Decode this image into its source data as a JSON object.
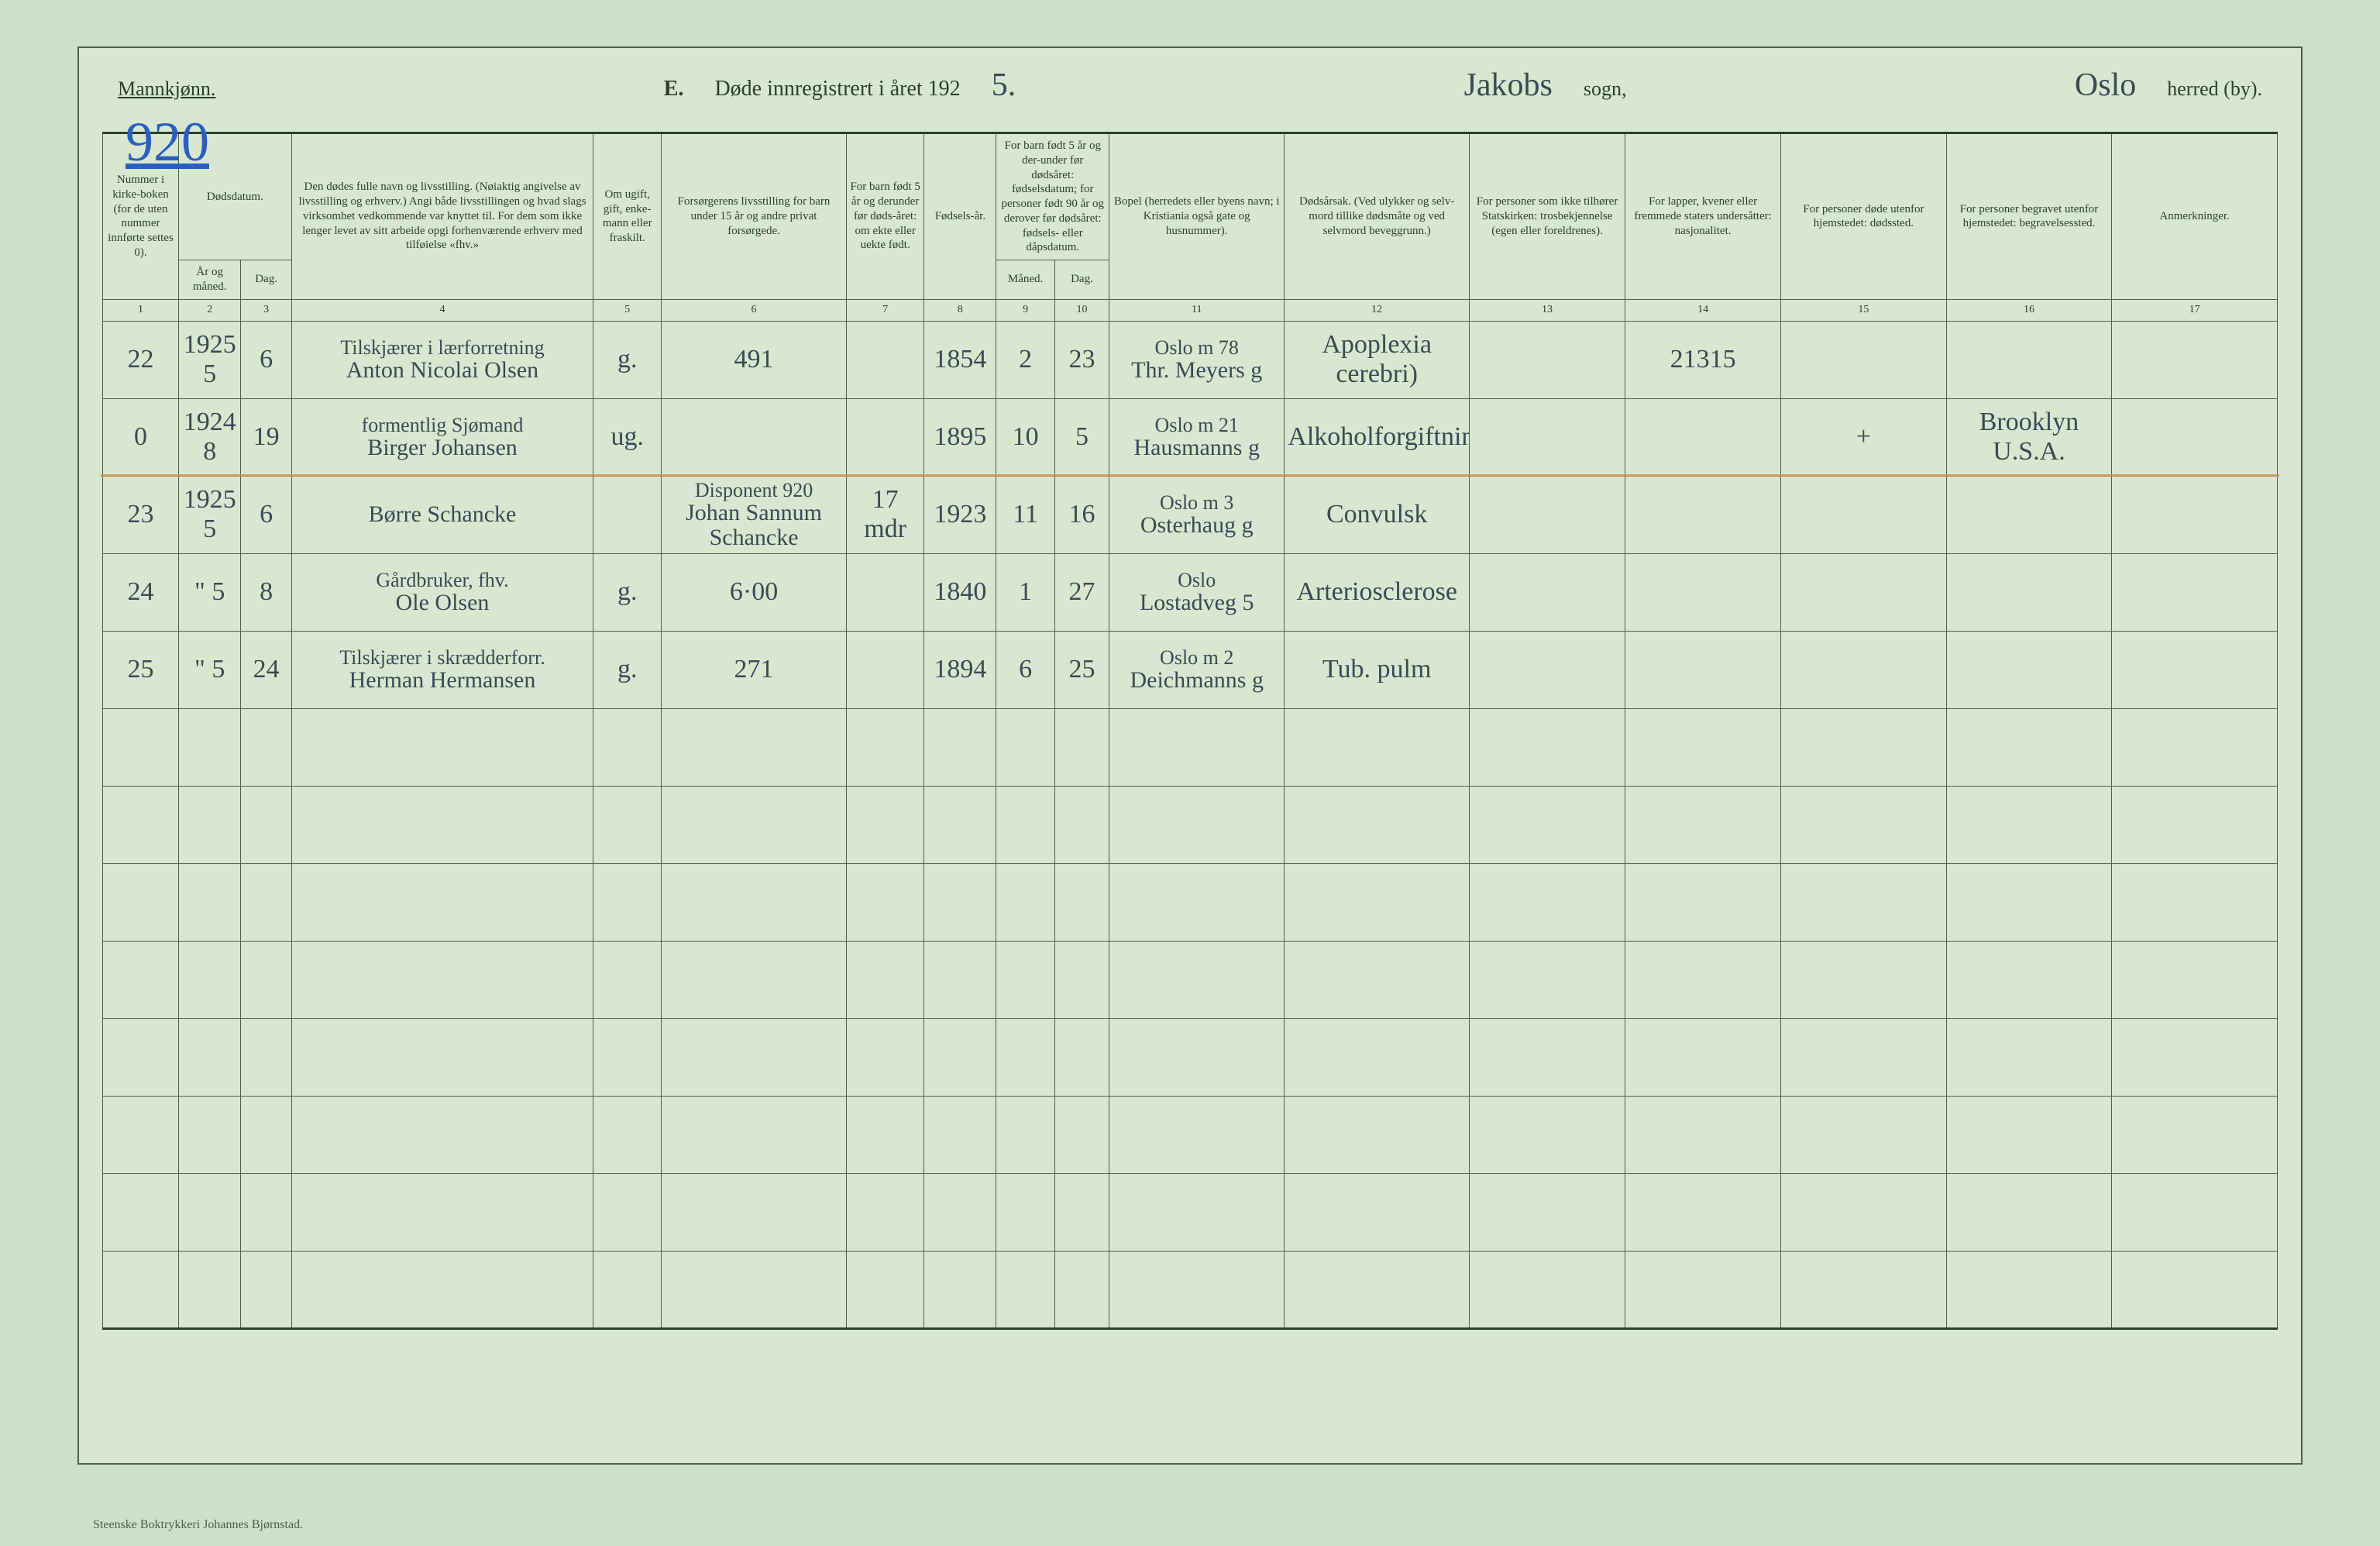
{
  "header": {
    "gender": "Mannkjønn.",
    "section_letter": "E.",
    "section_text": "Døde innregistrert i året 192",
    "year_suffix_hand": "5.",
    "sogn_hand": "Jakobs",
    "sogn_label": "sogn,",
    "herred_hand": "Oslo",
    "herred_label": "herred (by)."
  },
  "page_number": "920",
  "columns": {
    "c1": "Nummer i kirke-boken (for de uten nummer innførte settes 0).",
    "c2_top": "Dødsdatum.",
    "c2_a": "År og måned.",
    "c2_b": "Dag.",
    "c4": "Den dødes fulle navn og livsstilling. (Nøiaktig angivelse av livsstilling og erhverv.) Angi både livsstillingen og hvad slags virksomhet vedkommende var knyttet til. For dem som ikke lenger levet av sitt arbeide opgi forhenværende erhverv med tilføielse «fhv.»",
    "c5": "Om ugift, gift, enke-mann eller fraskilt.",
    "c6": "Forsørgerens livsstilling for barn under 15 år og andre privat forsørgede.",
    "c7": "For barn født 5 år og derunder før døds-året: om ekte eller uekte født.",
    "c8": "Fødsels-år.",
    "c9_top": "For barn født 5 år og der-under før dødsåret: fødselsdatum; for personer født 90 år og derover før dødsåret: fødsels- eller dåpsdatum.",
    "c9_a": "Måned.",
    "c9_b": "Dag.",
    "c11": "Bopel (herredets eller byens navn; i Kristiania også gate og husnummer).",
    "c12": "Dødsårsak. (Ved ulykker og selv-mord tillike dødsmåte og ved selvmord beveggrunn.)",
    "c13": "For personer som ikke tilhører Statskirken: trosbekjennelse (egen eller foreldrenes).",
    "c14": "For lapper, kvener eller fremmede staters undersåtter: nasjonalitet.",
    "c15": "For personer døde utenfor hjemstedet: dødssted.",
    "c16": "For personer begravet utenfor hjemstedet: begravelsessted.",
    "c17": "Anmerkninger."
  },
  "colnums": [
    "1",
    "2",
    "3",
    "4",
    "5",
    "6",
    "7",
    "8",
    "9",
    "10",
    "11",
    "12",
    "13",
    "14",
    "15",
    "16",
    "17"
  ],
  "rows": [
    {
      "n": "22",
      "yr": "1925 5",
      "day": "6",
      "name_top": "Tilskjærer i lærforretning",
      "name_bot": "Anton Nicolai Olsen",
      "status": "g.",
      "provider": "491",
      "ekte": "",
      "born": "1854",
      "bm": "2",
      "bd": "23",
      "home_top": "Oslo   m 78",
      "home_bot": "Thr. Meyers g",
      "cause": "Apoplexia cerebri)",
      "rel": "",
      "nat": "21315",
      "dsted": "",
      "bsted": "",
      "anm": ""
    },
    {
      "n": "0",
      "yr": "1924 8",
      "day": "19",
      "name_top": "formentlig Sjømand",
      "name_bot": "Birger Johansen",
      "status": "ug.",
      "provider": "",
      "ekte": "",
      "born": "1895",
      "bm": "10",
      "bd": "5",
      "home_top": "Oslo   m 21",
      "home_bot": "Hausmanns g",
      "cause": "Alkoholforgiftning",
      "rel": "",
      "nat": "",
      "dsted": "+",
      "bsted": "Brooklyn U.S.A.",
      "anm": ""
    },
    {
      "n": "23",
      "yr": "1925 5",
      "day": "6",
      "name_top": "",
      "name_bot": "Børre Schancke",
      "status": "",
      "provider_top": "Disponent 920",
      "provider": "Johan Sannum Schancke",
      "ekte": "17 mdr",
      "born": "1923",
      "bm": "11",
      "bd": "16",
      "home_top": "Oslo    m 3",
      "home_bot": "Osterhaug g",
      "cause": "Convulsk",
      "rel": "",
      "nat": "",
      "dsted": "",
      "bsted": "",
      "anm": ""
    },
    {
      "n": "24",
      "yr": "\" 5",
      "day": "8",
      "name_top": "Gårdbruker, fhv.",
      "name_bot": "Ole Olsen",
      "status": "g.",
      "provider": "6·00",
      "ekte": "",
      "born": "1840",
      "bm": "1",
      "bd": "27",
      "home_top": "Oslo",
      "home_bot": "Lostadveg 5",
      "cause": "Arteriosclerose",
      "rel": "",
      "nat": "",
      "dsted": "",
      "bsted": "",
      "anm": ""
    },
    {
      "n": "25",
      "yr": "\" 5",
      "day": "24",
      "name_top": "Tilskjærer i skrædderforr.",
      "name_bot": "Herman Hermansen",
      "status": "g.",
      "provider": "271",
      "ekte": "",
      "born": "1894",
      "bm": "6",
      "bd": "25",
      "home_top": "Oslo    m 2",
      "home_bot": "Deichmanns g",
      "cause": "Tub. pulm",
      "rel": "",
      "nat": "",
      "dsted": "",
      "bsted": "",
      "anm": ""
    }
  ],
  "empty_row_count": 8,
  "footer": "Steenske Boktrykkeri Johannes Bjørnstad."
}
